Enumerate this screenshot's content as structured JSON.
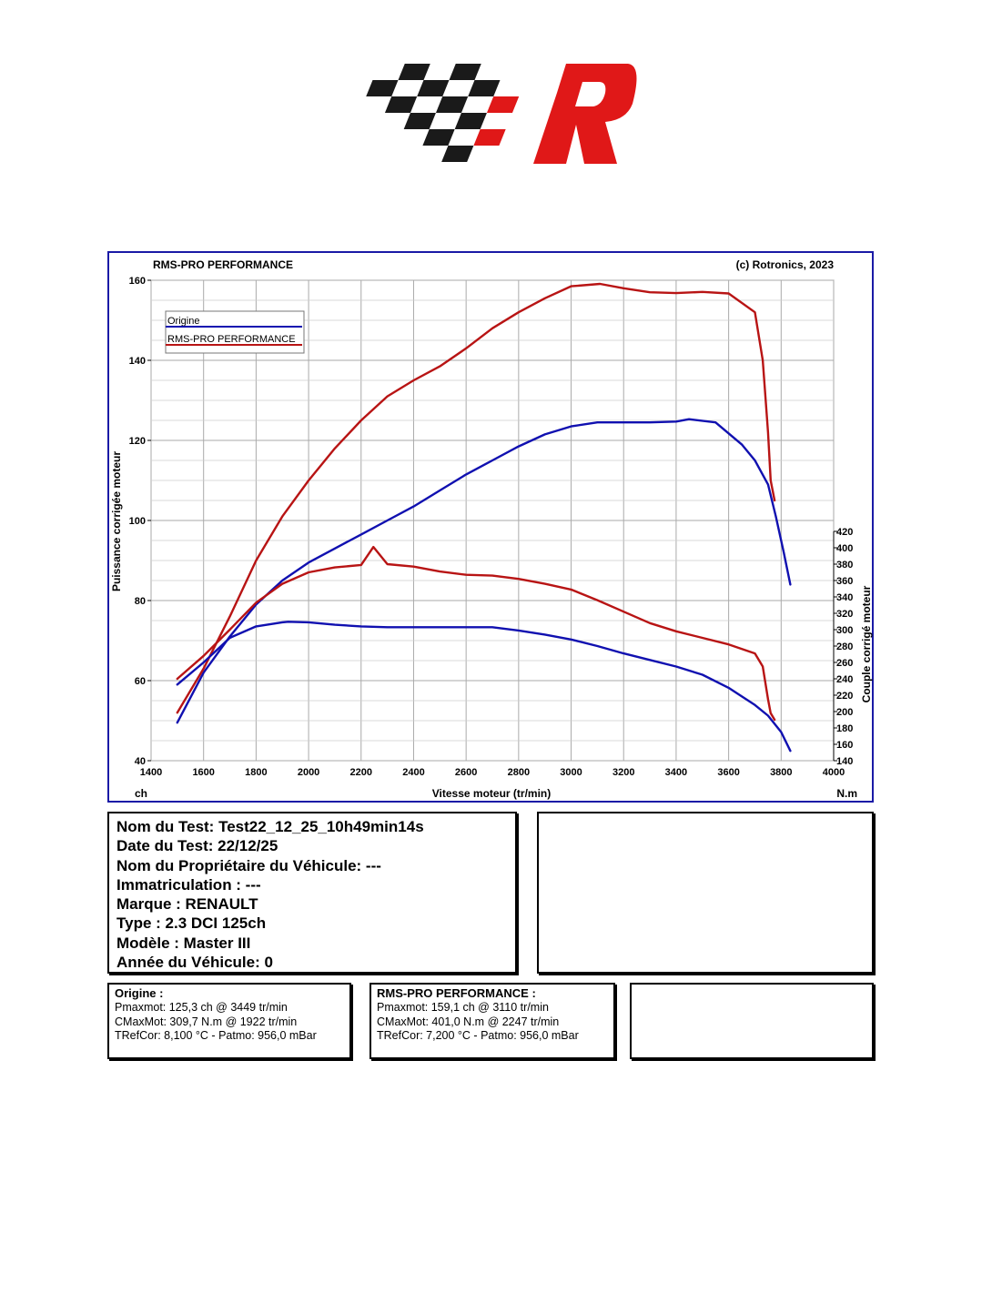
{
  "logo": {
    "alt": "RMS-PRO logo",
    "checker_color": "#1a1a1a",
    "accent_color": "#e01818"
  },
  "chart": {
    "header_left": "RMS-PRO PERFORMANCE",
    "header_right": "(c) Rotronics, 2023",
    "colors": {
      "frame": "#1a1aa6",
      "origine": "#1010b0",
      "rms": "#b81414",
      "grid": "#aaaaaa"
    }
  },
  "chart_data": {
    "type": "line",
    "title": "",
    "xlabel": "Vitesse moteur (tr/min)",
    "xlim": [
      1400,
      4000
    ],
    "x_ticks": [
      "1400",
      "1600",
      "1800",
      "2000",
      "2200",
      "2400",
      "2600",
      "2800",
      "3000",
      "3200",
      "3400",
      "3600",
      "3800",
      "4000"
    ],
    "x_unit_left": "ch",
    "x_unit_right": "N.m",
    "ylabel_left": "Puissance corrigée moteur",
    "ylim_left": [
      40,
      160
    ],
    "y_ticks_left": [
      "40",
      "60",
      "80",
      "100",
      "120",
      "140",
      "160"
    ],
    "ylabel_right": "Couple corrigé moteur",
    "ylim_right": [
      140,
      420
    ],
    "y_ticks_right": [
      "140",
      "160",
      "180",
      "200",
      "220",
      "240",
      "260",
      "280",
      "300",
      "320",
      "340",
      "360",
      "380",
      "400",
      "420"
    ],
    "grid": true,
    "legend_position": "top-left",
    "legend": [
      "Origine",
      "RMS-PRO PERFORMANCE"
    ],
    "series": [
      {
        "name": "Origine",
        "quantity": "power",
        "color": "#1010b0",
        "x": [
          1500,
          1600,
          1700,
          1800,
          1900,
          2000,
          2100,
          2200,
          2300,
          2400,
          2500,
          2600,
          2700,
          2800,
          2900,
          3000,
          3100,
          3200,
          3300,
          3400,
          3449,
          3550,
          3650,
          3700,
          3750,
          3780,
          3810,
          3835
        ],
        "values": [
          49.5,
          62,
          71,
          79,
          85,
          89.5,
          93,
          96.5,
          100,
          103.5,
          107.5,
          111.5,
          115,
          118.5,
          121.5,
          123.5,
          124.5,
          124.5,
          124.5,
          124.7,
          125.3,
          124.5,
          119,
          115,
          109,
          101,
          92,
          84
        ]
      },
      {
        "name": "RMS-PRO PERFORMANCE",
        "quantity": "power",
        "color": "#b81414",
        "x": [
          1500,
          1600,
          1700,
          1800,
          1900,
          2000,
          2100,
          2200,
          2300,
          2400,
          2500,
          2600,
          2700,
          2800,
          2900,
          3000,
          3110,
          3200,
          3300,
          3400,
          3500,
          3600,
          3700,
          3730,
          3750,
          3760,
          3775
        ],
        "values": [
          52,
          63,
          76,
          90,
          101,
          110,
          118,
          125,
          131,
          135,
          138.5,
          143,
          148,
          152,
          155.5,
          158.5,
          159.1,
          158,
          157,
          156.8,
          157.1,
          156.7,
          152,
          140,
          122,
          110,
          105
        ]
      },
      {
        "name": "Origine",
        "quantity": "torque",
        "color": "#1010b0",
        "x": [
          1500,
          1600,
          1700,
          1800,
          1900,
          1922,
          2000,
          2100,
          2200,
          2300,
          2400,
          2500,
          2600,
          2700,
          2800,
          2900,
          3000,
          3100,
          3200,
          3300,
          3400,
          3500,
          3600,
          3700,
          3750,
          3800,
          3835
        ],
        "values": [
          233,
          260,
          290,
          304,
          309,
          309.7,
          309,
          306,
          304,
          303,
          303,
          303,
          303,
          303,
          299,
          294,
          288,
          280,
          271,
          263,
          255,
          245,
          229,
          208,
          195,
          175,
          152
        ]
      },
      {
        "name": "RMS-PRO PERFORMANCE",
        "quantity": "torque",
        "color": "#b81414",
        "x": [
          1500,
          1600,
          1700,
          1800,
          1900,
          2000,
          2100,
          2200,
          2247,
          2300,
          2400,
          2500,
          2600,
          2700,
          2800,
          2900,
          3000,
          3100,
          3200,
          3300,
          3400,
          3500,
          3600,
          3700,
          3730,
          3750,
          3760,
          3775
        ],
        "values": [
          240,
          268,
          300,
          333,
          356,
          370,
          376,
          379,
          401,
          380,
          377,
          371,
          367,
          366,
          362,
          356,
          349,
          336,
          322,
          308,
          298,
          290,
          282,
          271,
          255,
          215,
          198,
          190
        ]
      }
    ]
  },
  "info": {
    "test_name": "Nom du Test: Test22_12_25_10h49min14s",
    "test_date": "Date du Test: 22/12/25",
    "owner": "Nom du Propriétaire du Véhicule: ---",
    "registration": "Immatriculation  : ---",
    "brand": "Marque  : RENAULT",
    "type": "Type  : 2.3 DCI 125ch",
    "model": "Modèle  : Master III",
    "year": "Année du Véhicule: 0"
  },
  "results": {
    "origine": {
      "title": "Origine :",
      "pmax": "Pmaxmot: 125,3 ch @ 3449 tr/min",
      "cmax": "CMaxMot: 309,7 N.m @ 1922 tr/min",
      "tref": "TRefCor: 8,100 °C - Patmo: 956,0 mBar"
    },
    "rms": {
      "title": "RMS-PRO PERFORMANCE :",
      "pmax": "Pmaxmot: 159,1 ch @ 3110 tr/min",
      "cmax": "CMaxMot: 401,0 N.m @ 2247 tr/min",
      "tref": "TRefCor: 7,200 °C - Patmo: 956,0 mBar"
    }
  }
}
